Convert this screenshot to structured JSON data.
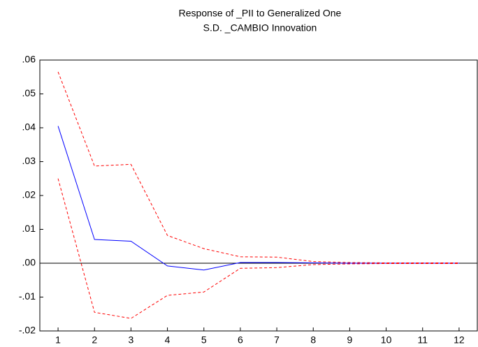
{
  "chart_data": {
    "type": "line",
    "title": [
      "Response of _PII to Generalized One",
      "S.D. _CAMBIO Innovation"
    ],
    "categories": [
      "1",
      "2",
      "3",
      "4",
      "5",
      "6",
      "7",
      "8",
      "9",
      "10",
      "11",
      "12"
    ],
    "series": [
      {
        "color": "#0000ff",
        "dash": false,
        "values": [
          0.0405,
          0.007,
          0.0065,
          -0.0008,
          -0.002,
          0.0002,
          0.0002,
          0.0001,
          0.0,
          0.0,
          0.0,
          0.0
        ]
      },
      {
        "color": "#ff0000",
        "dash": true,
        "values": [
          0.0565,
          0.0287,
          0.0292,
          0.0082,
          0.0043,
          0.0019,
          0.0018,
          0.0005,
          0.0002,
          0.0001,
          0.0001,
          0.0001
        ]
      },
      {
        "color": "#ff0000",
        "dash": true,
        "values": [
          0.025,
          -0.0145,
          -0.0163,
          -0.0095,
          -0.0085,
          -0.0015,
          -0.0013,
          -0.0004,
          -0.0002,
          -0.0001,
          -0.0001,
          -0.0001
        ]
      }
    ],
    "ylim": [
      -0.02,
      0.06
    ],
    "yticks": [
      {
        "value": -0.02,
        "label": "-.02"
      },
      {
        "value": -0.01,
        "label": "-.01"
      },
      {
        "value": 0,
        "label": ".00"
      },
      {
        "value": 0.01,
        "label": ".01"
      },
      {
        "value": 0.02,
        "label": ".02"
      },
      {
        "value": 0.03,
        "label": ".03"
      },
      {
        "value": 0.04,
        "label": ".04"
      },
      {
        "value": 0.05,
        "label": ".05"
      },
      {
        "value": 0.06,
        "label": ".06"
      }
    ],
    "grid": false
  }
}
